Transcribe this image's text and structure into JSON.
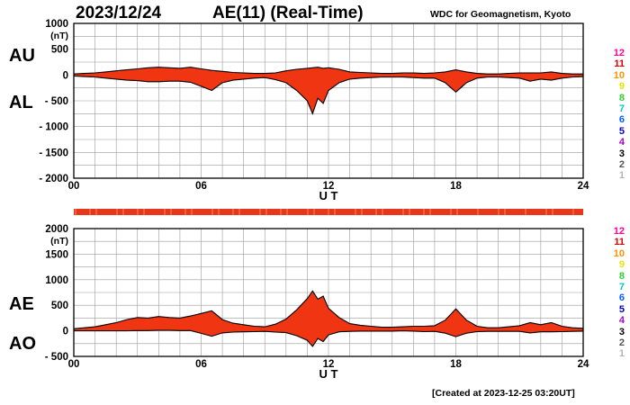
{
  "header": {
    "date": "2023/12/24",
    "title": "AE(11) (Real-Time)",
    "source": "WDC for Geomagnetism, Kyoto",
    "created": "[Created at 2023-12-25 03:20UT]"
  },
  "labels": {
    "au": "AU",
    "al": "AL",
    "ae": "AE",
    "ao": "AO"
  },
  "colors": {
    "fill": "#f03512",
    "outline": "#000000",
    "grid": "#9a9a9a",
    "quality_bar": "#e8361a",
    "hours": [
      "#ff00a0",
      "#e00000",
      "#ff9000",
      "#e6e600",
      "#30d030",
      "#00c8c8",
      "#0060ff",
      "#0000c0",
      "#b000d0",
      "#000000",
      "#555555",
      "#b4b4b4"
    ]
  },
  "hour_labels": [
    "12",
    "11",
    "10",
    "9",
    "8",
    "7",
    "6",
    "5",
    "4",
    "3",
    "2",
    "1"
  ],
  "chart_data": [
    {
      "name": "AU/AL",
      "type": "area",
      "units": "(nT)",
      "xlabel": "U T",
      "xlim": [
        0,
        24
      ],
      "xticks": [
        "00",
        "06",
        "12",
        "18",
        "24"
      ],
      "ylim": [
        -2000,
        1000
      ],
      "ytick_values": [
        1000,
        500,
        0,
        -500,
        -1000,
        -1500,
        -2000
      ],
      "ytick_labels": [
        "1000",
        "500",
        "0",
        "- 500",
        "- 1000",
        "- 1500",
        "- 2000"
      ],
      "x": [
        0,
        0.5,
        1,
        1.5,
        2,
        2.5,
        3,
        3.5,
        4,
        4.5,
        5,
        5.5,
        6,
        6.5,
        7,
        7.5,
        8,
        8.5,
        9,
        9.5,
        10,
        10.5,
        11,
        11.25,
        11.5,
        11.75,
        12,
        12.5,
        13,
        13.5,
        14,
        14.5,
        15,
        15.5,
        16,
        16.5,
        17,
        17.5,
        18,
        18.5,
        19,
        19.5,
        20,
        20.5,
        21,
        21.5,
        22,
        22.5,
        23,
        23.5,
        24
      ],
      "series": [
        {
          "name": "AU",
          "values": [
            20,
            30,
            40,
            60,
            80,
            100,
            120,
            140,
            150,
            140,
            130,
            150,
            120,
            90,
            70,
            50,
            40,
            30,
            30,
            40,
            80,
            110,
            130,
            140,
            150,
            130,
            140,
            110,
            60,
            50,
            40,
            30,
            30,
            40,
            40,
            30,
            40,
            60,
            100,
            60,
            30,
            20,
            20,
            30,
            40,
            40,
            40,
            60,
            30,
            20,
            20
          ]
        },
        {
          "name": "AL",
          "values": [
            -20,
            -30,
            -40,
            -60,
            -80,
            -100,
            -110,
            -130,
            -130,
            -120,
            -120,
            -140,
            -220,
            -300,
            -150,
            -100,
            -80,
            -60,
            -50,
            -90,
            -150,
            -300,
            -500,
            -750,
            -450,
            -550,
            -300,
            -150,
            -80,
            -60,
            -50,
            -40,
            -40,
            -40,
            -50,
            -60,
            -60,
            -150,
            -330,
            -150,
            -60,
            -40,
            -40,
            -50,
            -60,
            -120,
            -80,
            -100,
            -60,
            -40,
            -30
          ]
        }
      ]
    },
    {
      "name": "AE/AO",
      "type": "area",
      "units": "(nT)",
      "xlabel": "U T",
      "xlim": [
        0,
        24
      ],
      "xticks": [
        "00",
        "06",
        "12",
        "18",
        "24"
      ],
      "ylim": [
        -500,
        2000
      ],
      "ytick_values": [
        2000,
        1500,
        1000,
        500,
        0,
        -500
      ],
      "ytick_labels": [
        "2000",
        "1500",
        "1000",
        "500",
        "0",
        "- 500"
      ],
      "x": [
        0,
        0.5,
        1,
        1.5,
        2,
        2.5,
        3,
        3.5,
        4,
        4.5,
        5,
        5.5,
        6,
        6.5,
        7,
        7.5,
        8,
        8.5,
        9,
        9.5,
        10,
        10.5,
        11,
        11.25,
        11.5,
        11.75,
        12,
        12.5,
        13,
        13.5,
        14,
        14.5,
        15,
        15.5,
        16,
        16.5,
        17,
        17.5,
        18,
        18.5,
        19,
        19.5,
        20,
        20.5,
        21,
        21.5,
        22,
        22.5,
        23,
        23.5,
        24
      ],
      "series": [
        {
          "name": "AE",
          "values": [
            40,
            60,
            80,
            120,
            160,
            220,
            260,
            250,
            280,
            260,
            250,
            290,
            340,
            390,
            220,
            150,
            120,
            90,
            80,
            130,
            230,
            410,
            630,
            780,
            620,
            680,
            440,
            260,
            140,
            110,
            90,
            70,
            70,
            80,
            90,
            90,
            100,
            210,
            430,
            210,
            90,
            60,
            60,
            80,
            100,
            160,
            120,
            160,
            90,
            60,
            50
          ]
        },
        {
          "name": "AO",
          "values": [
            0,
            0,
            0,
            0,
            0,
            0,
            5,
            5,
            10,
            10,
            5,
            5,
            -50,
            -105,
            -40,
            -25,
            -20,
            -15,
            -10,
            -25,
            -35,
            -95,
            -185,
            -305,
            -150,
            -210,
            -80,
            -20,
            -10,
            -5,
            -5,
            -5,
            -5,
            0,
            -5,
            -15,
            -10,
            -45,
            -115,
            -45,
            -15,
            -10,
            -10,
            -10,
            -10,
            -40,
            -20,
            -20,
            -15,
            -10,
            -5
          ]
        }
      ]
    }
  ]
}
